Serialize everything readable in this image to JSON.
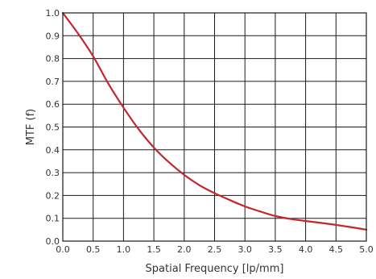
{
  "chart_data": {
    "type": "line",
    "title": "",
    "xlabel": "Spatial Frequency [lp/mm]",
    "ylabel": "MTF (f)",
    "xlim": [
      0,
      5
    ],
    "ylim": [
      0,
      1
    ],
    "grid": true,
    "x_ticks": [
      "0.0",
      "0.5",
      "1.0",
      "1.5",
      "2.0",
      "2.5",
      "3.0",
      "3.5",
      "4.0",
      "4.5",
      "5.0"
    ],
    "y_ticks": [
      "0.0",
      "0.1",
      "0.2",
      "0.3",
      "0.4",
      "0.5",
      "0.6",
      "0.7",
      "0.8",
      "0.9",
      "1.0"
    ],
    "series": [
      {
        "color": "#c0282e",
        "x": [
          0.0,
          0.25,
          0.5,
          0.75,
          1.0,
          1.25,
          1.5,
          1.75,
          2.0,
          2.25,
          2.5,
          2.75,
          3.0,
          3.25,
          3.5,
          3.75,
          4.0,
          4.25,
          4.5,
          4.75,
          5.0
        ],
        "y": [
          1.0,
          0.91,
          0.81,
          0.69,
          0.585,
          0.49,
          0.41,
          0.345,
          0.29,
          0.245,
          0.21,
          0.18,
          0.152,
          0.13,
          0.11,
          0.097,
          0.088,
          0.08,
          0.071,
          0.061,
          0.05
        ]
      }
    ]
  }
}
